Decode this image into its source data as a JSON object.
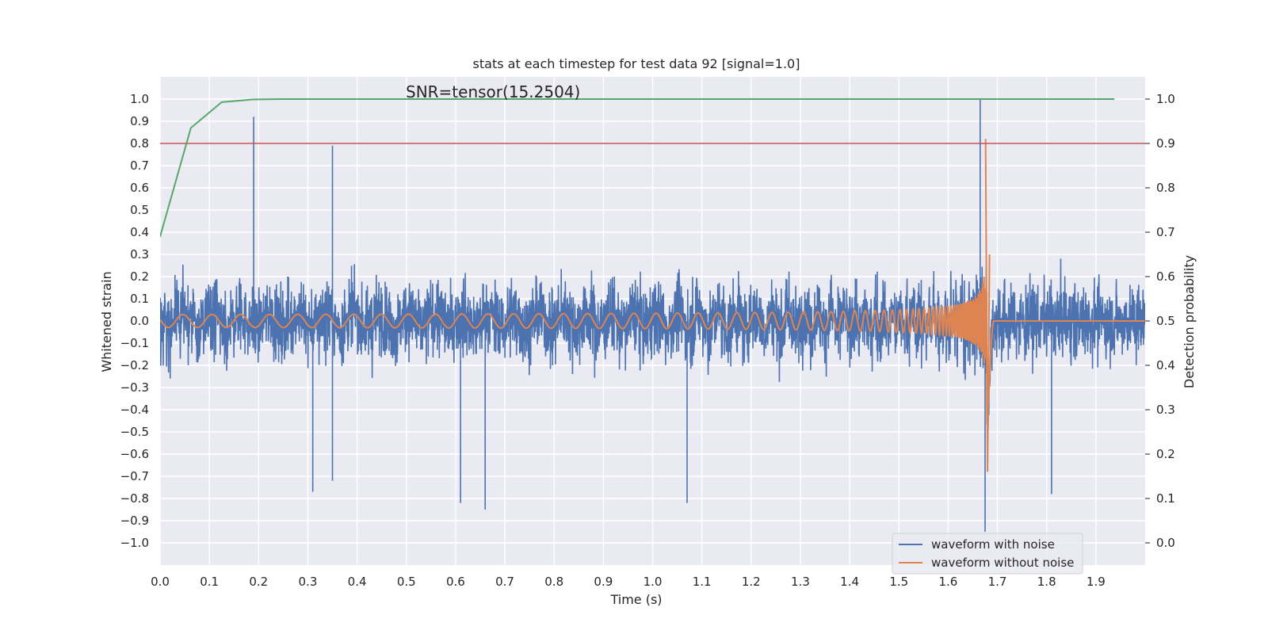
{
  "chart_data": {
    "type": "line",
    "title": "stats at each timestep for test data 92 [signal=1.0]",
    "annotation": "SNR=tensor(15.2504)",
    "xlabel": "Time (s)",
    "ylabel": "Whitened strain",
    "y2label": "Detection probability",
    "xlim": [
      0.0,
      2.0
    ],
    "ylim": [
      -1.1,
      1.1
    ],
    "y2lim": [
      -0.05,
      1.05
    ],
    "x_ticks": [
      "0.0",
      "0.1",
      "0.2",
      "0.3",
      "0.4",
      "0.5",
      "0.6",
      "0.7",
      "0.8",
      "0.9",
      "1.0",
      "1.1",
      "1.2",
      "1.3",
      "1.4",
      "1.5",
      "1.6",
      "1.7",
      "1.8",
      "1.9"
    ],
    "y_ticks": [
      "1.0",
      "0.9",
      "0.8",
      "0.7",
      "0.6",
      "0.5",
      "0.4",
      "0.3",
      "0.2",
      "0.1",
      "0.0",
      "−0.1",
      "−0.2",
      "−0.3",
      "−0.4",
      "−0.5",
      "−0.6",
      "−0.7",
      "−0.8",
      "−0.9",
      "−1.0"
    ],
    "y2_ticks": [
      "1.0",
      "0.9",
      "0.8",
      "0.7",
      "0.6",
      "0.5",
      "0.4",
      "0.3",
      "0.2",
      "0.1",
      "0.0"
    ],
    "grid": true,
    "legend_position": "bottom-right",
    "legend": [
      {
        "name": "waveform with noise",
        "color": "#4c72b0"
      },
      {
        "name": "waveform without noise",
        "color": "#dd8452"
      }
    ],
    "noise_series": {
      "name": "waveform with noise",
      "color": "#4c72b0",
      "notable_points": [
        {
          "x": 0.19,
          "y": 0.92
        },
        {
          "x": 0.35,
          "y": 0.79
        },
        {
          "x": 0.31,
          "y": -0.77
        },
        {
          "x": 0.35,
          "y": -0.72
        },
        {
          "x": 0.61,
          "y": -0.82
        },
        {
          "x": 0.66,
          "y": -0.85
        },
        {
          "x": 1.07,
          "y": -0.82
        },
        {
          "x": 1.665,
          "y": 1.0
        },
        {
          "x": 1.675,
          "y": -0.95
        },
        {
          "x": 1.81,
          "y": -0.78
        }
      ]
    },
    "clean_series": {
      "name": "waveform without noise",
      "color": "#dd8452",
      "description_points": [
        {
          "x": 0.0,
          "amp": 0.02,
          "freq": 15
        },
        {
          "x": 1.0,
          "amp": 0.05,
          "freq": 25
        },
        {
          "x": 1.5,
          "amp": 0.15,
          "freq": 40
        },
        {
          "x": 1.65,
          "amp": 0.3,
          "freq": 55
        },
        {
          "x": 1.68,
          "amp": 0.75,
          "freq": 120
        }
      ],
      "merger_time": 1.68,
      "peak_values": [
        0.82,
        -0.68
      ]
    },
    "probability_series": {
      "color": "#55a868",
      "axis": "right",
      "x": [
        0.0,
        0.0625,
        0.125,
        0.1875,
        0.25,
        0.3125,
        0.375,
        0.4375,
        0.5,
        1.0,
        1.5,
        1.9375
      ],
      "y": [
        0.69,
        0.935,
        0.993,
        0.999,
        1.0,
        1.0,
        1.0,
        1.0,
        1.0,
        1.0,
        1.0,
        1.0
      ]
    },
    "threshold_line": {
      "axis": "right",
      "y": 0.9,
      "color": "#c44e52"
    }
  }
}
